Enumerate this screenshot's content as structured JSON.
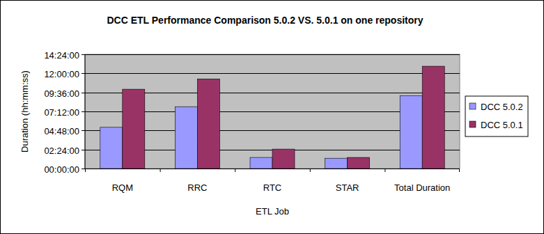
{
  "chart_data": {
    "type": "bar",
    "title": "DCC ETL Performance Comparison 5.0.2 VS. 5.0.1 on one repository",
    "x_label": "ETL Job",
    "y_label": "Duration (hh:mm:ss)",
    "categories": [
      "RQM",
      "RRC",
      "RTC",
      "STAR",
      "Total Duration"
    ],
    "series": [
      {
        "name": "DCC 5.0.2",
        "color": "#9999ff",
        "values": [
          5.2,
          7.8,
          1.4,
          1.3,
          9.2
        ]
      },
      {
        "name": "DCC 5.0.1",
        "color": "#993366",
        "values": [
          10.0,
          11.3,
          2.45,
          1.4,
          12.9
        ]
      }
    ],
    "ylim": [
      0,
      14.4
    ],
    "yticks": [
      {
        "value": 0,
        "label": "00:00:00"
      },
      {
        "value": 2.4,
        "label": "02:24:00"
      },
      {
        "value": 4.8,
        "label": "04:48:00"
      },
      {
        "value": 7.2,
        "label": "07:12:00"
      },
      {
        "value": 9.6,
        "label": "09:36:00"
      },
      {
        "value": 12,
        "label": "12:00:00"
      },
      {
        "value": 14.4,
        "label": "14:24:00"
      }
    ],
    "grid": true,
    "legend": "right"
  }
}
